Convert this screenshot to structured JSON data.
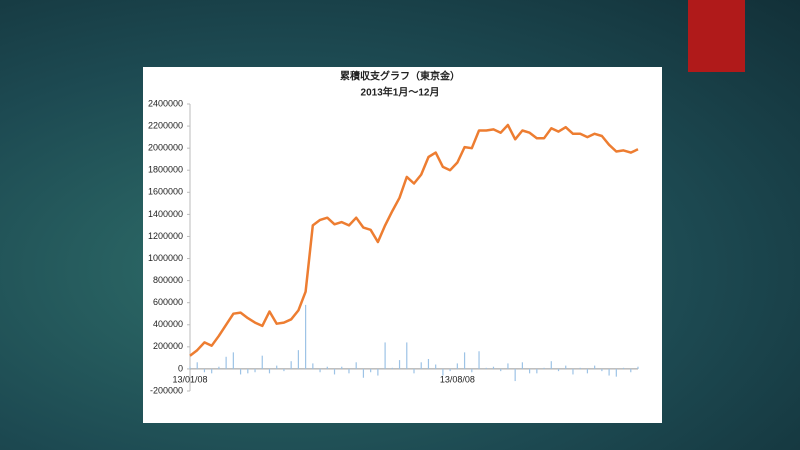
{
  "chart_data": {
    "type": "line-bar",
    "title": "累積収支グラフ（東京金）",
    "subtitle": "2013年1月～12月",
    "categories": [
      "13/01/08",
      null,
      null,
      null,
      null,
      null,
      null,
      null,
      null,
      null,
      null,
      null,
      null,
      null,
      null,
      null,
      null,
      null,
      null,
      null,
      null,
      null,
      null,
      null,
      null,
      null,
      null,
      null,
      null,
      null,
      null,
      null,
      null,
      null,
      null,
      null,
      null,
      "13/08/08",
      null,
      null,
      null,
      null,
      null,
      null,
      null,
      null,
      null,
      null,
      null,
      null,
      null,
      null,
      null,
      null,
      null,
      null,
      null,
      null,
      null,
      null,
      null,
      null,
      null
    ],
    "series": [
      {
        "type": "bar",
        "color": "#9dc3e6",
        "values": [
          20000,
          60000,
          -30000,
          -40000,
          20000,
          110000,
          150000,
          -50000,
          -40000,
          -30000,
          120000,
          -40000,
          30000,
          -20000,
          70000,
          170000,
          580000,
          50000,
          -30000,
          20000,
          -50000,
          20000,
          -40000,
          60000,
          -80000,
          -30000,
          -60000,
          240000,
          10000,
          80000,
          240000,
          -40000,
          60000,
          90000,
          40000,
          -60000,
          -20000,
          50000,
          150000,
          -30000,
          160000,
          10000,
          20000,
          -20000,
          50000,
          -110000,
          60000,
          -40000,
          -40000,
          10000,
          70000,
          -20000,
          30000,
          -50000,
          10000,
          -40000,
          30000,
          -20000,
          -60000,
          -70000,
          10000,
          -30000,
          20000
        ]
      },
      {
        "type": "line",
        "color": "#ed7d31",
        "values": [
          120000,
          170000,
          240000,
          210000,
          300000,
          400000,
          500000,
          510000,
          460000,
          420000,
          390000,
          520000,
          410000,
          420000,
          450000,
          530000,
          700000,
          1300000,
          1350000,
          1370000,
          1310000,
          1330000,
          1300000,
          1370000,
          1280000,
          1260000,
          1150000,
          1300000,
          1430000,
          1550000,
          1740000,
          1680000,
          1760000,
          1920000,
          1960000,
          1830000,
          1800000,
          1870000,
          2010000,
          2000000,
          2160000,
          2160000,
          2170000,
          2140000,
          2210000,
          2080000,
          2160000,
          2140000,
          2090000,
          2090000,
          2180000,
          2150000,
          2190000,
          2130000,
          2130000,
          2100000,
          2130000,
          2110000,
          2030000,
          1970000,
          1980000,
          1960000,
          1990000
        ]
      }
    ],
    "ylim": [
      -200000,
      2400000
    ],
    "yticks": [
      -200000,
      0,
      200000,
      400000,
      600000,
      800000,
      1000000,
      1200000,
      1400000,
      1600000,
      1800000,
      2000000,
      2200000,
      2400000
    ],
    "grid": false
  }
}
